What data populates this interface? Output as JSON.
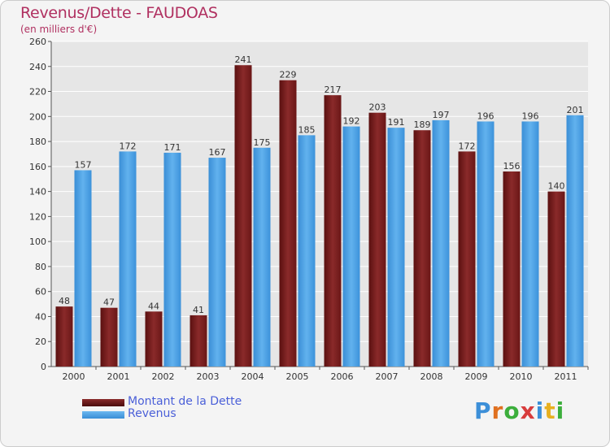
{
  "title": "Revenus/Dette - FAUDOAS",
  "subtitle": "(en milliers d'€)",
  "colors": {
    "title": "#b03060",
    "debt": "#7a1e1e",
    "debt_light": "#a03030",
    "revenue": "#4a9ee0",
    "revenue_light": "#6cb8f0",
    "legend_text": "#4a5fd8",
    "grid": "#ffffff",
    "plot_bg": "#e8e8e8"
  },
  "legend": [
    {
      "label": "Montant de la Dette",
      "color": "#7a1e1e"
    },
    {
      "label": "Revenus",
      "color": "#4a9ee0"
    }
  ],
  "logo": {
    "letters": [
      "P",
      "r",
      "o",
      "x",
      "i",
      "t",
      "i"
    ],
    "colors": [
      "#3c8fd8",
      "#e07020",
      "#3cae3c",
      "#d83c3c",
      "#3c8fd8",
      "#e8b020",
      "#3cae3c"
    ]
  },
  "chart_data": {
    "type": "bar",
    "title": "Revenus/Dette - FAUDOAS",
    "subtitle": "(en milliers d'€)",
    "categories": [
      "2000",
      "2001",
      "2002",
      "2003",
      "2004",
      "2005",
      "2006",
      "2007",
      "2008",
      "2009",
      "2010",
      "2011"
    ],
    "series": [
      {
        "name": "Montant de la Dette",
        "values": [
          48,
          47,
          44,
          41,
          241,
          229,
          217,
          203,
          189,
          172,
          156,
          140
        ]
      },
      {
        "name": "Revenus",
        "values": [
          157,
          172,
          171,
          167,
          175,
          185,
          192,
          191,
          197,
          196,
          196,
          201
        ]
      }
    ],
    "ylim": [
      0,
      260
    ],
    "yticks": [
      0,
      20,
      40,
      60,
      80,
      100,
      120,
      140,
      160,
      180,
      200,
      220,
      240,
      260
    ],
    "grid": true,
    "legend_position": "bottom-left"
  }
}
